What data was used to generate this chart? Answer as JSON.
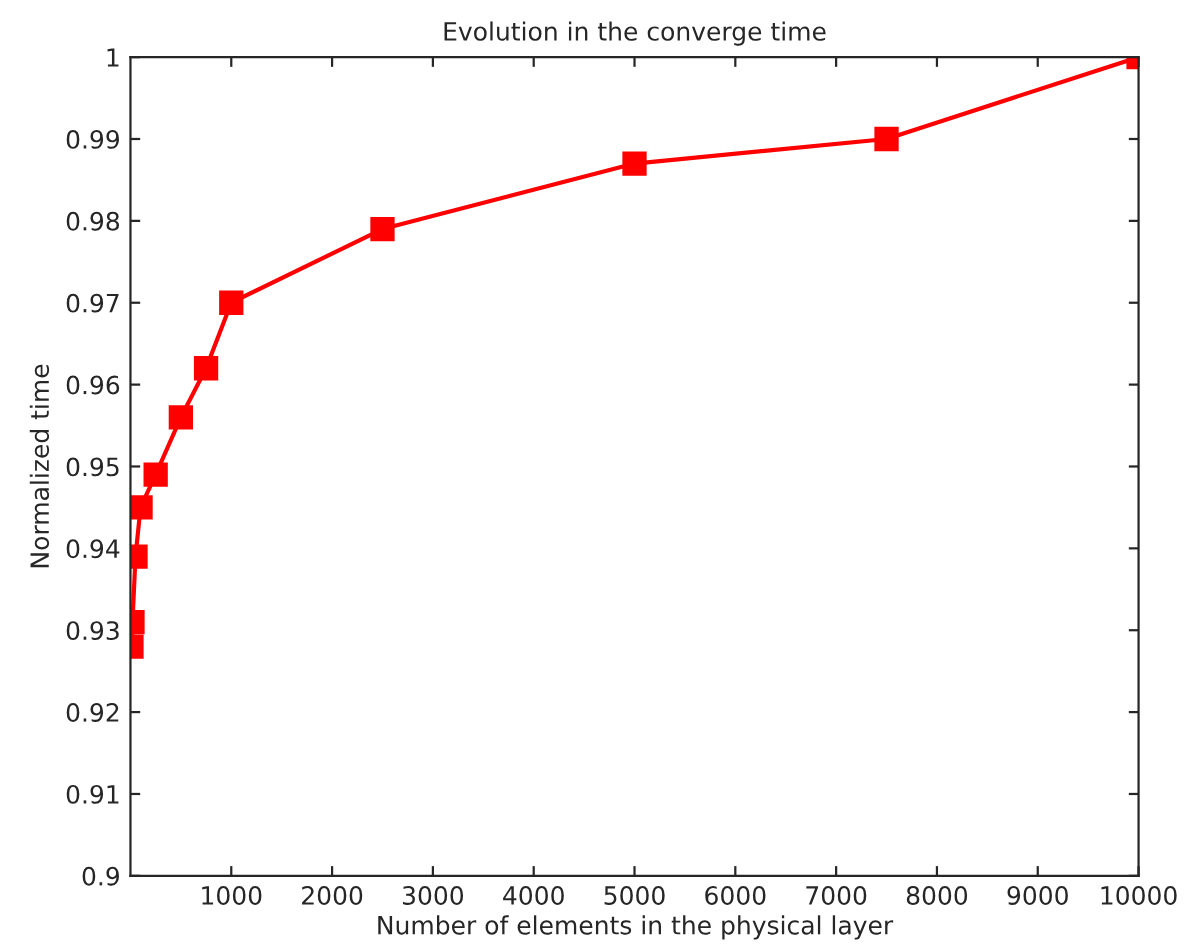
{
  "chart_data": {
    "type": "line",
    "title": "Evolution in the converge time",
    "xlabel": "Number of elements in the physical layer",
    "ylabel": "Normalized time",
    "x": [
      10,
      20,
      50,
      100,
      250,
      500,
      750,
      1000,
      2500,
      5000,
      7500,
      10000
    ],
    "series": [
      {
        "color": "#ff0000",
        "values": [
          0.928,
          0.931,
          0.939,
          0.945,
          0.949,
          0.956,
          0.962,
          0.97,
          0.979,
          0.987,
          0.99,
          1.0
        ]
      }
    ],
    "xlim": [
      0,
      10000
    ],
    "xticks": [
      1000,
      2000,
      3000,
      4000,
      5000,
      6000,
      7000,
      8000,
      9000,
      10000
    ],
    "ylim": [
      0.9,
      1
    ],
    "yticks": [
      {
        "value": 0.9,
        "label": "0.9"
      },
      {
        "value": 0.91,
        "label": "0.91"
      },
      {
        "value": 0.92,
        "label": "0.92"
      },
      {
        "value": 0.93,
        "label": "0.93"
      },
      {
        "value": 0.94,
        "label": "0.94"
      },
      {
        "value": 0.95,
        "label": "0.95"
      },
      {
        "value": 0.96,
        "label": "0.96"
      },
      {
        "value": 0.97,
        "label": "0.97"
      },
      {
        "value": 0.98,
        "label": "0.98"
      },
      {
        "value": 0.99,
        "label": "0.99"
      },
      {
        "value": 1,
        "label": "1"
      }
    ],
    "marker": "square",
    "line_style": "solid",
    "grid": false,
    "legend": false
  }
}
